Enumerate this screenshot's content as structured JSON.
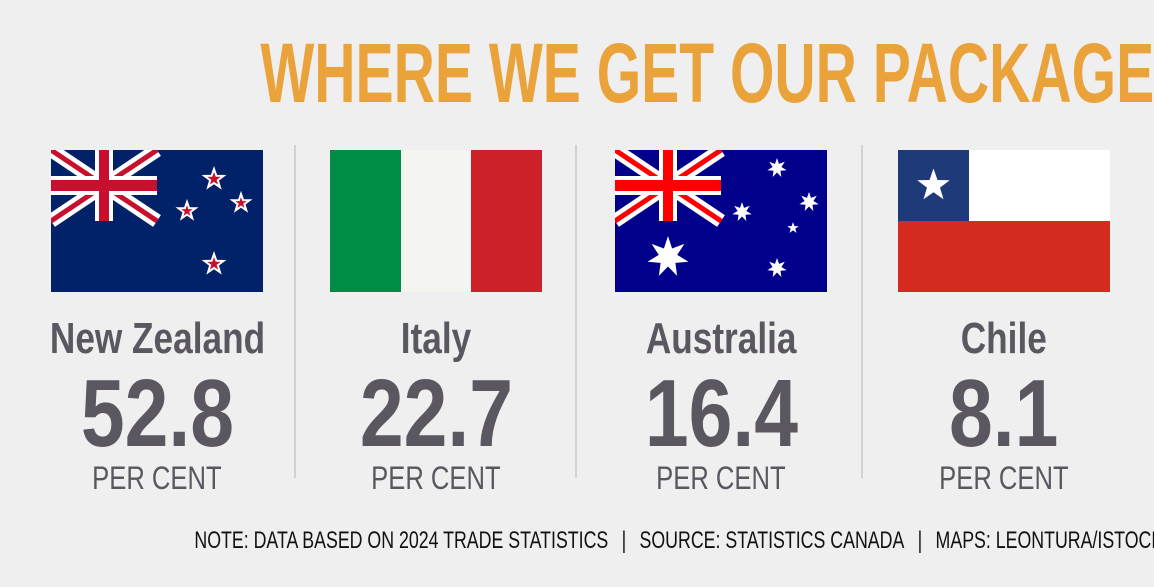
{
  "title": "WHERE WE GET OUR PACKAGED BEES",
  "countries": [
    {
      "name": "New Zealand",
      "value": "52.8",
      "unit": "PER CENT",
      "flag_icon": "new-zealand-flag"
    },
    {
      "name": "Italy",
      "value": "22.7",
      "unit": "PER CENT",
      "flag_icon": "italy-flag"
    },
    {
      "name": "Australia",
      "value": "16.4",
      "unit": "PER CENT",
      "flag_icon": "australia-flag"
    },
    {
      "name": "Chile",
      "value": "8.1",
      "unit": "PER CENT",
      "flag_icon": "chile-flag"
    }
  ],
  "footer": {
    "note": "NOTE: DATA BASED ON 2024 TRADE STATISTICS",
    "separator": "|",
    "source": "SOURCE: STATISTICS CANADA",
    "credit": "MAPS: LEONTURA/ISTOCK/GETTY IMAGES"
  },
  "colors": {
    "title": "#E9A33A",
    "text": "#5B5760",
    "background": "#EFEFEF"
  }
}
